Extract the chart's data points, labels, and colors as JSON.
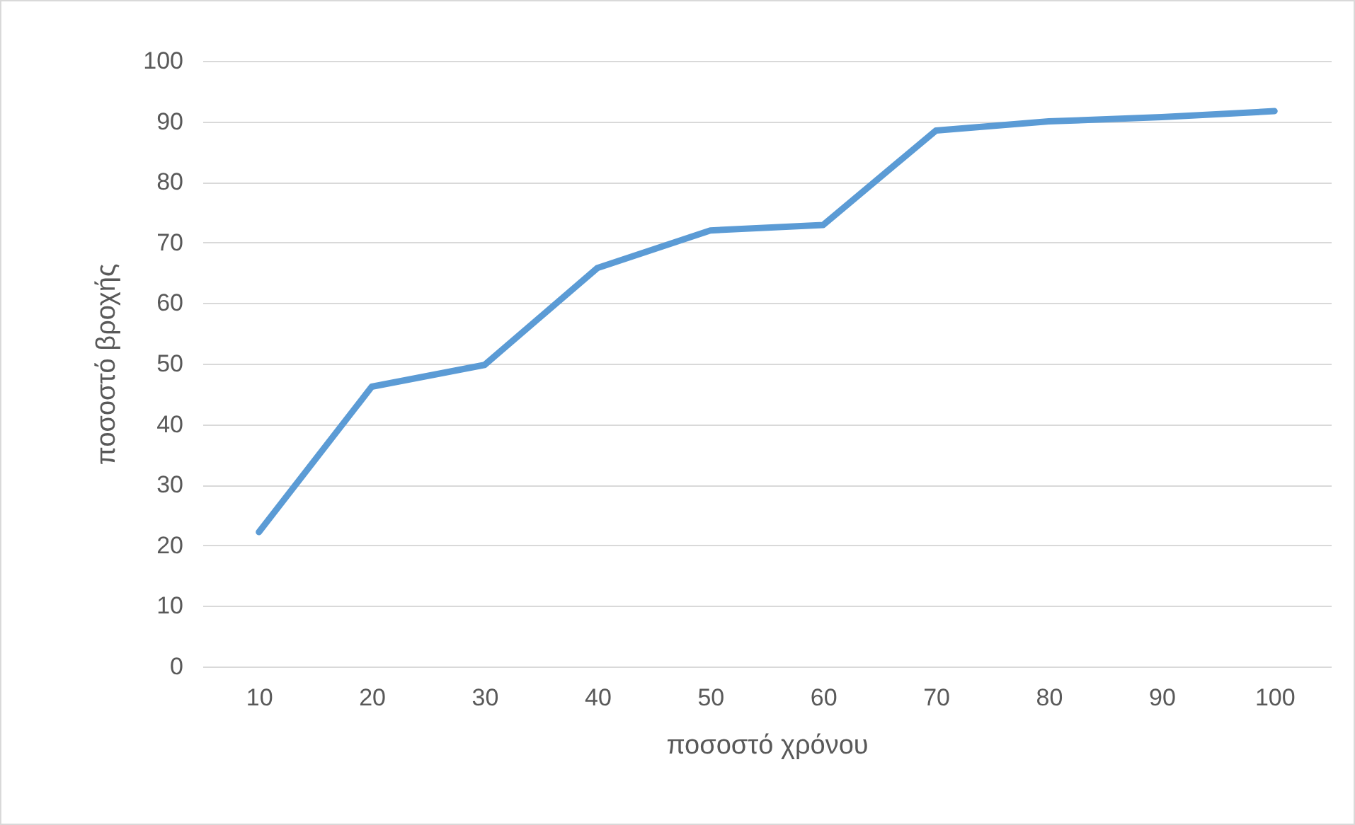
{
  "chart_data": {
    "type": "line",
    "xlabel": "ποσοστό χρόνου",
    "ylabel": "ποσοστό βροχής",
    "categories": [
      "10",
      "20",
      "30",
      "40",
      "50",
      "60",
      "70",
      "80",
      "90",
      "100"
    ],
    "series": [
      {
        "color": "#5b9bd5",
        "values": [
          22.2,
          46.2,
          49.8,
          65.8,
          72.0,
          72.9,
          88.5,
          90.0,
          90.7,
          91.7
        ]
      }
    ],
    "ylim": [
      0,
      100
    ],
    "yticks": [
      0,
      10,
      20,
      30,
      40,
      50,
      60,
      70,
      80,
      90,
      100
    ],
    "grid": "y",
    "legend": false,
    "marker": "none",
    "line_style": "solid"
  }
}
